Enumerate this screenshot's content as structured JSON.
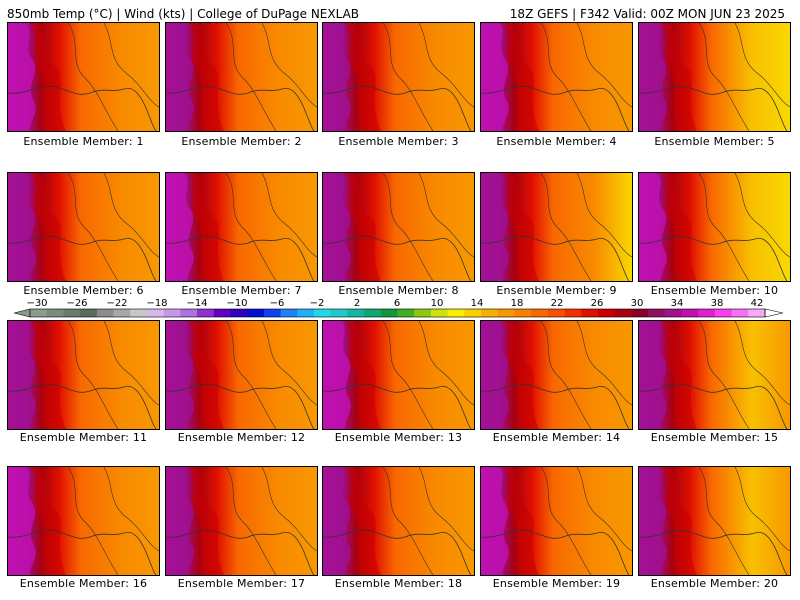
{
  "header": {
    "left": "850mb Temp (°C) | Wind (kts) | College of DuPage NEXLAB",
    "right": "18Z GEFS | F342 Valid: 00Z MON JUN 23 2025"
  },
  "colorbar": {
    "tick_labels": [
      "-30",
      "-26",
      "-22",
      "-18",
      "-14",
      "-10",
      "-6",
      "-2",
      "2",
      "6",
      "10",
      "14",
      "18",
      "22",
      "26",
      "30",
      "34",
      "38",
      "42"
    ],
    "colors": [
      "#8c9c8c",
      "#7c8c7c",
      "#6c7c6c",
      "#5c6c5c",
      "#8c8c8c",
      "#a8a8a8",
      "#c8c8c8",
      "#d8b8e8",
      "#c898e8",
      "#b070e0",
      "#9030d0",
      "#6000c0",
      "#3000c0",
      "#0010d0",
      "#1040f0",
      "#2080f8",
      "#20b0f8",
      "#20d8e8",
      "#20c8c8",
      "#10b8a0",
      "#10a870",
      "#109840",
      "#40b020",
      "#90c810",
      "#d0e010",
      "#f8f000",
      "#f8d000",
      "#f8b000",
      "#f89800",
      "#f88000",
      "#f86800",
      "#f85000",
      "#f03000",
      "#e01000",
      "#c80000",
      "#a80010",
      "#8c0028",
      "#901060",
      "#a01090",
      "#c010b0",
      "#e020d0",
      "#f840f0",
      "#f870f8",
      "#f8a8f8"
    ]
  },
  "members": [
    {
      "label": "Ensemble Member: 1"
    },
    {
      "label": "Ensemble Member: 2"
    },
    {
      "label": "Ensemble Member: 3"
    },
    {
      "label": "Ensemble Member: 4"
    },
    {
      "label": "Ensemble Member: 5"
    },
    {
      "label": "Ensemble Member: 6"
    },
    {
      "label": "Ensemble Member: 7"
    },
    {
      "label": "Ensemble Member: 8"
    },
    {
      "label": "Ensemble Member: 9"
    },
    {
      "label": "Ensemble Member: 10"
    },
    {
      "label": "Ensemble Member: 11"
    },
    {
      "label": "Ensemble Member: 12"
    },
    {
      "label": "Ensemble Member: 13"
    },
    {
      "label": "Ensemble Member: 14"
    },
    {
      "label": "Ensemble Member: 15"
    },
    {
      "label": "Ensemble Member: 16"
    },
    {
      "label": "Ensemble Member: 17"
    },
    {
      "label": "Ensemble Member: 18"
    },
    {
      "label": "Ensemble Member: 19"
    },
    {
      "label": "Ensemble Member: 20"
    }
  ]
}
